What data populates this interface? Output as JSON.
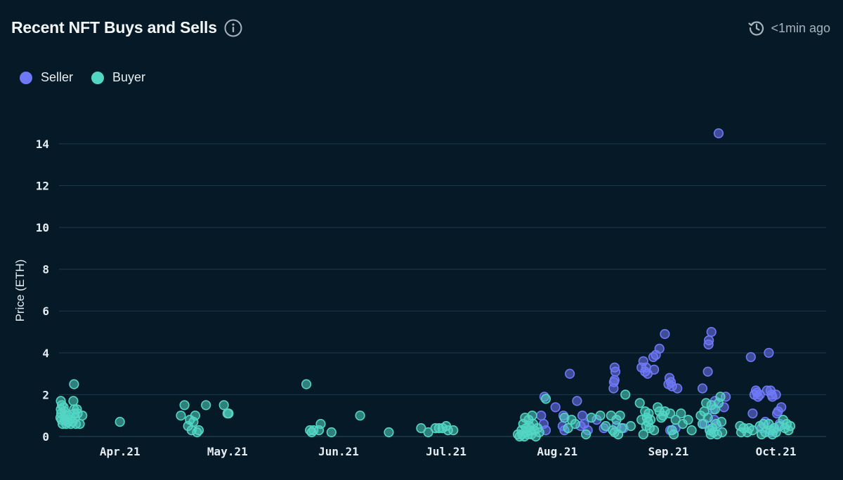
{
  "header": {
    "title": "Recent NFT Buys and Sells",
    "updated": "<1min ago"
  },
  "colors": {
    "background": "#051a26",
    "seller": "#6f78f7",
    "buyer": "#52d6c4",
    "grid": "#1d3a4b"
  },
  "legend": [
    {
      "label": "Seller",
      "color": "#6f78f7"
    },
    {
      "label": "Buyer",
      "color": "#52d6c4"
    }
  ],
  "chart_data": {
    "type": "scatter",
    "title": "Recent NFT Buys and Sells",
    "ylabel": "Price (ETH)",
    "xlabel": "",
    "ylim": [
      0,
      14.5
    ],
    "yticks": [
      0,
      2,
      4,
      6,
      8,
      10,
      12,
      14
    ],
    "xlim_days": [
      0,
      214
    ],
    "xticks": [
      {
        "label": "Apr.21",
        "day": 17
      },
      {
        "label": "May.21",
        "day": 47
      },
      {
        "label": "Jun.21",
        "day": 78
      },
      {
        "label": "Jul.21",
        "day": 108
      },
      {
        "label": "Aug.21",
        "day": 139
      },
      {
        "label": "Sep.21",
        "day": 170
      },
      {
        "label": "Oct.21",
        "day": 200
      }
    ],
    "x_unit": "days since Mar 15 2021",
    "grid": true,
    "series": [
      {
        "name": "Seller",
        "points": [
          [
            135.2,
            0.6
          ],
          [
            135.8,
            0.3
          ],
          [
            135.4,
            1.9
          ],
          [
            134.5,
            1.0
          ],
          [
            138.5,
            1.4
          ],
          [
            140.5,
            0.5
          ],
          [
            140.7,
            1.0
          ],
          [
            141.0,
            0.3
          ],
          [
            142.5,
            3.0
          ],
          [
            144.5,
            1.7
          ],
          [
            145.5,
            0.5
          ],
          [
            146.0,
            1.0
          ],
          [
            146.5,
            0.6
          ],
          [
            147.5,
            0.3
          ],
          [
            150.0,
            0.8
          ],
          [
            152.0,
            0.4
          ],
          [
            155.0,
            3.3
          ],
          [
            155.2,
            3.1
          ],
          [
            155.0,
            2.7
          ],
          [
            154.8,
            2.6
          ],
          [
            154.7,
            2.3
          ],
          [
            155.5,
            0.5
          ],
          [
            157.5,
            0.4
          ],
          [
            163.0,
            3.6
          ],
          [
            162.5,
            3.3
          ],
          [
            163.5,
            3.1
          ],
          [
            163.8,
            3.3
          ],
          [
            164.2,
            3.0
          ],
          [
            166.0,
            3.2
          ],
          [
            165.8,
            3.8
          ],
          [
            166.5,
            3.9
          ],
          [
            167.5,
            4.2
          ],
          [
            169.0,
            4.9
          ],
          [
            170.0,
            2.5
          ],
          [
            170.3,
            2.8
          ],
          [
            170.7,
            2.6
          ],
          [
            171.0,
            2.4
          ],
          [
            172.5,
            2.3
          ],
          [
            172.0,
            0.4
          ],
          [
            170.5,
            0.3
          ],
          [
            179.5,
            2.3
          ],
          [
            181.0,
            3.1
          ],
          [
            181.3,
            4.6
          ],
          [
            181.2,
            4.4
          ],
          [
            182.0,
            5.0
          ],
          [
            182.5,
            1.3
          ],
          [
            183.0,
            1.7
          ],
          [
            182.8,
            0.8
          ],
          [
            183.5,
            0.5
          ],
          [
            184.0,
            14.5
          ],
          [
            186.0,
            1.9
          ],
          [
            185.5,
            1.4
          ],
          [
            180.0,
            0.6
          ],
          [
            181.5,
            0.3
          ],
          [
            193.0,
            3.8
          ],
          [
            193.5,
            1.1
          ],
          [
            194.0,
            2.0
          ],
          [
            194.4,
            2.2
          ],
          [
            194.7,
            2.1
          ],
          [
            195.0,
            1.9
          ],
          [
            195.5,
            2.0
          ],
          [
            197.0,
            0.7
          ],
          [
            197.5,
            2.2
          ],
          [
            198.0,
            4.0
          ],
          [
            198.5,
            2.2
          ],
          [
            198.8,
            2.0
          ],
          [
            199.0,
            1.9
          ],
          [
            200.0,
            2.0
          ],
          [
            200.3,
            1.1
          ],
          [
            200.6,
            1.2
          ],
          [
            201.0,
            0.6
          ],
          [
            201.5,
            1.4
          ],
          [
            199.5,
            0.3
          ],
          [
            196.0,
            0.4
          ],
          [
            198.2,
            0.2
          ]
        ]
      },
      {
        "name": "Buyer",
        "points": [
          [
            0.5,
            1.7
          ],
          [
            0.8,
            1.5
          ],
          [
            0.5,
            1.3
          ],
          [
            0.6,
            1.1
          ],
          [
            0.4,
            0.9
          ],
          [
            0.7,
            0.8
          ],
          [
            1.0,
            0.6
          ],
          [
            1.3,
            1.4
          ],
          [
            1.5,
            1.2
          ],
          [
            1.7,
            1.0
          ],
          [
            1.6,
            0.8
          ],
          [
            2.0,
            0.6
          ],
          [
            2.3,
            0.7
          ],
          [
            2.5,
            1.0
          ],
          [
            3.0,
            0.8
          ],
          [
            3.3,
            0.6
          ],
          [
            3.8,
            0.7
          ],
          [
            4.2,
            1.3
          ],
          [
            4.0,
            1.7
          ],
          [
            4.3,
            1.1
          ],
          [
            4.5,
            0.9
          ],
          [
            4.7,
            0.6
          ],
          [
            4.2,
            2.5
          ],
          [
            5.0,
            1.3
          ],
          [
            5.2,
            1.1
          ],
          [
            5.8,
            0.6
          ],
          [
            6.5,
            1.0
          ],
          [
            17.0,
            0.7
          ],
          [
            34.0,
            1.0
          ],
          [
            35.0,
            1.5
          ],
          [
            36.0,
            0.5
          ],
          [
            36.5,
            0.8
          ],
          [
            37.0,
            0.3
          ],
          [
            37.5,
            0.7
          ],
          [
            38.0,
            1.0
          ],
          [
            38.5,
            0.2
          ],
          [
            39.0,
            0.3
          ],
          [
            41.0,
            1.5
          ],
          [
            46.0,
            1.5
          ],
          [
            47.0,
            1.1
          ],
          [
            47.3,
            1.1
          ],
          [
            69.0,
            2.5
          ],
          [
            70.0,
            0.3
          ],
          [
            70.5,
            0.2
          ],
          [
            71.0,
            0.3
          ],
          [
            72.5,
            0.3
          ],
          [
            73.0,
            0.6
          ],
          [
            76.0,
            0.2
          ],
          [
            84.0,
            1.0
          ],
          [
            92.0,
            0.2
          ],
          [
            101.0,
            0.4
          ],
          [
            103.0,
            0.2
          ],
          [
            105.0,
            0.4
          ],
          [
            106.0,
            0.4
          ],
          [
            107.0,
            0.4
          ],
          [
            108.0,
            0.5
          ],
          [
            108.5,
            0.3
          ],
          [
            110.0,
            0.3
          ],
          [
            128.0,
            0.1
          ],
          [
            128.5,
            0.0
          ],
          [
            129.0,
            0.3
          ],
          [
            129.2,
            0.1
          ],
          [
            129.5,
            0.6
          ],
          [
            129.8,
            0.0
          ],
          [
            130.0,
            0.9
          ],
          [
            130.3,
            0.4
          ],
          [
            130.5,
            0.2
          ],
          [
            130.8,
            0.1
          ],
          [
            131.0,
            0.8
          ],
          [
            131.2,
            0.5
          ],
          [
            131.5,
            0.3
          ],
          [
            131.8,
            0.1
          ],
          [
            132.0,
            1.0
          ],
          [
            132.3,
            0.6
          ],
          [
            132.6,
            0.3
          ],
          [
            133.0,
            0.0
          ],
          [
            133.5,
            0.4
          ],
          [
            134.0,
            0.2
          ],
          [
            135.8,
            1.8
          ],
          [
            141.0,
            0.9
          ],
          [
            142.0,
            0.4
          ],
          [
            143.0,
            0.8
          ],
          [
            144.0,
            0.6
          ],
          [
            147.0,
            0.1
          ],
          [
            148.5,
            0.9
          ],
          [
            151.0,
            1.0
          ],
          [
            152.5,
            0.5
          ],
          [
            154.0,
            1.0
          ],
          [
            154.5,
            0.3
          ],
          [
            155.0,
            0.2
          ],
          [
            155.5,
            0.8
          ],
          [
            156.0,
            0.1
          ],
          [
            156.5,
            1.0
          ],
          [
            157.0,
            0.4
          ],
          [
            158.0,
            2.0
          ],
          [
            159.5,
            0.5
          ],
          [
            162.0,
            1.6
          ],
          [
            162.5,
            0.8
          ],
          [
            163.0,
            0.1
          ],
          [
            163.5,
            1.2
          ],
          [
            163.8,
            0.5
          ],
          [
            164.0,
            0.9
          ],
          [
            164.3,
            0.7
          ],
          [
            164.5,
            1.1
          ],
          [
            164.8,
            0.4
          ],
          [
            165.0,
            0.8
          ],
          [
            166.0,
            0.3
          ],
          [
            167.0,
            1.4
          ],
          [
            167.5,
            1.2
          ],
          [
            168.0,
            0.9
          ],
          [
            168.5,
            1.0
          ],
          [
            169.0,
            1.2
          ],
          [
            170.5,
            1.1
          ],
          [
            171.0,
            0.3
          ],
          [
            171.5,
            0.1
          ],
          [
            172.0,
            0.8
          ],
          [
            173.5,
            1.1
          ],
          [
            174.0,
            0.6
          ],
          [
            175.5,
            0.8
          ],
          [
            176.5,
            0.3
          ],
          [
            179.0,
            1.0
          ],
          [
            179.5,
            0.6
          ],
          [
            180.0,
            1.2
          ],
          [
            180.5,
            1.6
          ],
          [
            181.0,
            0.9
          ],
          [
            181.5,
            0.3
          ],
          [
            181.8,
            0.1
          ],
          [
            182.0,
            1.5
          ],
          [
            182.3,
            0.4
          ],
          [
            182.6,
            0.2
          ],
          [
            183.0,
            1.3
          ],
          [
            183.3,
            0.6
          ],
          [
            183.6,
            0.1
          ],
          [
            184.0,
            1.6
          ],
          [
            184.5,
            1.9
          ],
          [
            184.8,
            0.7
          ],
          [
            185.0,
            0.2
          ],
          [
            190.0,
            0.5
          ],
          [
            190.3,
            0.2
          ],
          [
            191.0,
            0.4
          ],
          [
            192.0,
            0.2
          ],
          [
            192.5,
            0.4
          ],
          [
            193.5,
            0.3
          ],
          [
            195.5,
            0.5
          ],
          [
            196.0,
            0.1
          ],
          [
            196.5,
            0.6
          ],
          [
            197.0,
            0.2
          ],
          [
            198.0,
            0.6
          ],
          [
            198.5,
            0.3
          ],
          [
            199.0,
            0.1
          ],
          [
            199.5,
            0.4
          ],
          [
            200.0,
            0.2
          ],
          [
            201.0,
            0.5
          ],
          [
            202.0,
            0.8
          ],
          [
            202.5,
            0.4
          ],
          [
            203.0,
            0.6
          ],
          [
            203.5,
            0.3
          ],
          [
            204.0,
            0.5
          ]
        ]
      }
    ]
  }
}
